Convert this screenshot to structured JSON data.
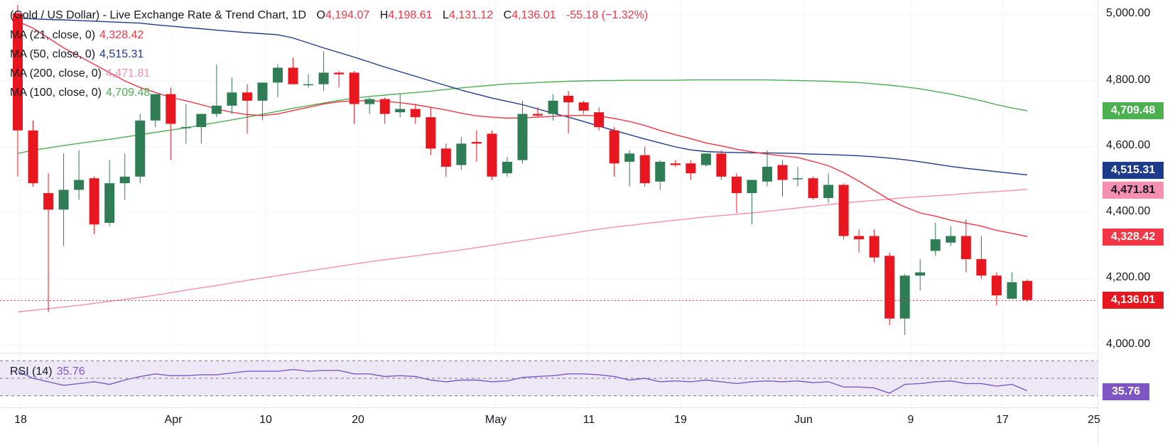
{
  "header": {
    "title": "(Gold / US Dollar) - Live Exchange Rate & Trend Chart, 1D",
    "open_label": "O",
    "open": "4,194.07",
    "high_label": "H",
    "high": "4,198.61",
    "low_label": "L",
    "low": "4,131.12",
    "close_label": "C",
    "close": "4,136.01",
    "change": "-55.18 (−1.32%)"
  },
  "legends": {
    "ma21": {
      "label": "MA (21, close, 0)",
      "value": "4,328.42",
      "color": "#f23645"
    },
    "ma50": {
      "label": "MA (50, close, 0)",
      "value": "4,515.31",
      "color": "#1e3a8a"
    },
    "ma200": {
      "label": "MA (200, close, 0)",
      "value": "4,471.81",
      "color": "#f48fb1"
    },
    "ma100": {
      "label": "MA (100, close, 0)",
      "value": "4,709.48",
      "color": "#4caf50"
    },
    "rsi": {
      "label": "RSI (14)",
      "value": "35.76",
      "color": "#7e57c2"
    }
  },
  "price_axis": {
    "ticks": [
      "5,000.00",
      "4,800.00",
      "4,600.00",
      "4,400.00",
      "4,200.00",
      "4,000.00"
    ],
    "tags": {
      "ma100": "4,709.48",
      "ma50": "4,515.31",
      "ma200": "4,471.81",
      "ma21": "4,328.42",
      "close": "4,136.01",
      "rsi": "35.76"
    }
  },
  "time_axis": [
    "18",
    "Apr",
    "10",
    "20",
    "May",
    "11",
    "19",
    "Jun",
    "9",
    "17",
    "25"
  ],
  "colors": {
    "up": "#2e7d55",
    "down": "#e8161f",
    "ma21": "#f23645",
    "ma50": "#1e3a8a",
    "ma200": "#f48fb1",
    "ma100": "#4caf50",
    "rsi": "#7e57c2",
    "rsi_band": "#ede7f6"
  },
  "chart_data": {
    "type": "candlestick",
    "price_range": [
      3960,
      5030
    ],
    "rsi_range": [
      20,
      80
    ],
    "rsi_levels": [
      70,
      50,
      30
    ],
    "candles": [
      {
        "o": 5005,
        "h": 5030,
        "l": 4510,
        "c": 4650
      },
      {
        "o": 4650,
        "h": 4680,
        "l": 4480,
        "c": 4490
      },
      {
        "o": 4460,
        "h": 4520,
        "l": 4100,
        "c": 4410
      },
      {
        "o": 4410,
        "h": 4580,
        "l": 4300,
        "c": 4470
      },
      {
        "o": 4470,
        "h": 4590,
        "l": 4440,
        "c": 4500
      },
      {
        "o": 4505,
        "h": 4510,
        "l": 4335,
        "c": 4365
      },
      {
        "o": 4370,
        "h": 4560,
        "l": 4360,
        "c": 4490
      },
      {
        "o": 4490,
        "h": 4580,
        "l": 4440,
        "c": 4510
      },
      {
        "o": 4510,
        "h": 4700,
        "l": 4490,
        "c": 4680
      },
      {
        "o": 4680,
        "h": 4760,
        "l": 4660,
        "c": 4760
      },
      {
        "o": 4760,
        "h": 4780,
        "l": 4560,
        "c": 4670
      },
      {
        "o": 4660,
        "h": 4730,
        "l": 4610,
        "c": 4660
      },
      {
        "o": 4660,
        "h": 4690,
        "l": 4610,
        "c": 4700
      },
      {
        "o": 4700,
        "h": 4850,
        "l": 4690,
        "c": 4725
      },
      {
        "o": 4725,
        "h": 4810,
        "l": 4700,
        "c": 4765
      },
      {
        "o": 4765,
        "h": 4790,
        "l": 4640,
        "c": 4740
      },
      {
        "o": 4740,
        "h": 4790,
        "l": 4680,
        "c": 4795
      },
      {
        "o": 4795,
        "h": 4850,
        "l": 4750,
        "c": 4840
      },
      {
        "o": 4840,
        "h": 4870,
        "l": 4790,
        "c": 4790
      },
      {
        "o": 4790,
        "h": 4820,
        "l": 4780,
        "c": 4790
      },
      {
        "o": 4790,
        "h": 4890,
        "l": 4770,
        "c": 4825
      },
      {
        "o": 4825,
        "h": 4830,
        "l": 4780,
        "c": 4820
      },
      {
        "o": 4825,
        "h": 4830,
        "l": 4670,
        "c": 4730
      },
      {
        "o": 4730,
        "h": 4750,
        "l": 4700,
        "c": 4745
      },
      {
        "o": 4745,
        "h": 4750,
        "l": 4670,
        "c": 4700
      },
      {
        "o": 4705,
        "h": 4760,
        "l": 4690,
        "c": 4715
      },
      {
        "o": 4715,
        "h": 4730,
        "l": 4670,
        "c": 4690
      },
      {
        "o": 4690,
        "h": 4720,
        "l": 4575,
        "c": 4595
      },
      {
        "o": 4595,
        "h": 4610,
        "l": 4510,
        "c": 4540
      },
      {
        "o": 4545,
        "h": 4630,
        "l": 4530,
        "c": 4610
      },
      {
        "o": 4615,
        "h": 4650,
        "l": 4555,
        "c": 4610
      },
      {
        "o": 4640,
        "h": 4650,
        "l": 4500,
        "c": 4510
      },
      {
        "o": 4520,
        "h": 4570,
        "l": 4510,
        "c": 4555
      },
      {
        "o": 4560,
        "h": 4740,
        "l": 4550,
        "c": 4700
      },
      {
        "o": 4700,
        "h": 4720,
        "l": 4690,
        "c": 4695
      },
      {
        "o": 4700,
        "h": 4760,
        "l": 4680,
        "c": 4740
      },
      {
        "o": 4755,
        "h": 4770,
        "l": 4640,
        "c": 4735
      },
      {
        "o": 4735,
        "h": 4740,
        "l": 4700,
        "c": 4710
      },
      {
        "o": 4705,
        "h": 4720,
        "l": 4650,
        "c": 4660
      },
      {
        "o": 4650,
        "h": 4660,
        "l": 4510,
        "c": 4550
      },
      {
        "o": 4555,
        "h": 4590,
        "l": 4480,
        "c": 4580
      },
      {
        "o": 4575,
        "h": 4600,
        "l": 4480,
        "c": 4490
      },
      {
        "o": 4495,
        "h": 4560,
        "l": 4470,
        "c": 4555
      },
      {
        "o": 4550,
        "h": 4560,
        "l": 4540,
        "c": 4545
      },
      {
        "o": 4550,
        "h": 4560,
        "l": 4500,
        "c": 4520
      },
      {
        "o": 4545,
        "h": 4580,
        "l": 4540,
        "c": 4580
      },
      {
        "o": 4580,
        "h": 4590,
        "l": 4500,
        "c": 4510
      },
      {
        "o": 4510,
        "h": 4520,
        "l": 4400,
        "c": 4460
      },
      {
        "o": 4460,
        "h": 4500,
        "l": 4365,
        "c": 4500
      },
      {
        "o": 4495,
        "h": 4590,
        "l": 4480,
        "c": 4540
      },
      {
        "o": 4545,
        "h": 4560,
        "l": 4450,
        "c": 4500
      },
      {
        "o": 4505,
        "h": 4540,
        "l": 4480,
        "c": 4505
      },
      {
        "o": 4505,
        "h": 4510,
        "l": 4440,
        "c": 4445
      },
      {
        "o": 4445,
        "h": 4520,
        "l": 4430,
        "c": 4485
      },
      {
        "o": 4485,
        "h": 4490,
        "l": 4320,
        "c": 4330
      },
      {
        "o": 4330,
        "h": 4350,
        "l": 4280,
        "c": 4320
      },
      {
        "o": 4330,
        "h": 4350,
        "l": 4250,
        "c": 4265
      },
      {
        "o": 4270,
        "h": 4280,
        "l": 4060,
        "c": 4080
      },
      {
        "o": 4080,
        "h": 4215,
        "l": 4030,
        "c": 4210
      },
      {
        "o": 4210,
        "h": 4260,
        "l": 4165,
        "c": 4220
      },
      {
        "o": 4285,
        "h": 4370,
        "l": 4270,
        "c": 4320
      },
      {
        "o": 4310,
        "h": 4360,
        "l": 4300,
        "c": 4330
      },
      {
        "o": 4330,
        "h": 4380,
        "l": 4220,
        "c": 4260
      },
      {
        "o": 4260,
        "h": 4330,
        "l": 4200,
        "c": 4210
      },
      {
        "o": 4210,
        "h": 4220,
        "l": 4120,
        "c": 4150
      },
      {
        "o": 4140,
        "h": 4220,
        "l": 4140,
        "c": 4190
      },
      {
        "o": 4194.07,
        "h": 4198.61,
        "l": 4131.12,
        "c": 4136.01
      }
    ],
    "ma21": [
      4980,
      4960,
      4930,
      4900,
      4875,
      4850,
      4825,
      4800,
      4780,
      4765,
      4750,
      4740,
      4728,
      4715,
      4705,
      4698,
      4695,
      4700,
      4710,
      4720,
      4730,
      4737,
      4740,
      4740,
      4738,
      4734,
      4728,
      4720,
      4712,
      4702,
      4694,
      4690,
      4687,
      4688,
      4690,
      4693,
      4695,
      4696,
      4694,
      4686,
      4677,
      4665,
      4650,
      4637,
      4625,
      4612,
      4603,
      4593,
      4585,
      4578,
      4573,
      4568,
      4556,
      4543,
      4522,
      4496,
      4468,
      4440,
      4418,
      4400,
      4390,
      4378,
      4369,
      4360,
      4347,
      4338,
      4328.42
    ],
    "ma50": [
      4990,
      4988,
      4986,
      4985,
      4983,
      4981,
      4979,
      4977,
      4975,
      4970,
      4966,
      4962,
      4958,
      4954,
      4950,
      4946,
      4943,
      4940,
      4930,
      4915,
      4900,
      4886,
      4872,
      4857,
      4842,
      4828,
      4814,
      4800,
      4786,
      4772,
      4760,
      4748,
      4738,
      4728,
      4715,
      4702,
      4690,
      4677,
      4663,
      4650,
      4637,
      4624,
      4612,
      4600,
      4591,
      4586,
      4584,
      4583,
      4582,
      4582,
      4581,
      4580,
      4578,
      4577,
      4575,
      4573,
      4570,
      4566,
      4561,
      4555,
      4548,
      4541,
      4535,
      4530,
      4525,
      4520,
      4515.31
    ],
    "ma200": [
      4100,
      4105,
      4110,
      4115,
      4120,
      4126,
      4132,
      4138,
      4144,
      4151,
      4158,
      4166,
      4173,
      4180,
      4188,
      4196,
      4203,
      4210,
      4217,
      4224,
      4231,
      4238,
      4245,
      4252,
      4258,
      4264,
      4270,
      4276,
      4282,
      4288,
      4295,
      4302,
      4309,
      4316,
      4323,
      4330,
      4337,
      4344,
      4351,
      4357,
      4362,
      4368,
      4373,
      4378,
      4383,
      4388,
      4392,
      4396,
      4400,
      4405,
      4410,
      4415,
      4420,
      4425,
      4430,
      4434,
      4438,
      4442,
      4446,
      4449,
      4452,
      4455,
      4459,
      4462,
      4465,
      4468,
      4471.81
    ],
    "ma100": [
      4580,
      4590,
      4597,
      4604,
      4611,
      4617,
      4623,
      4630,
      4637,
      4644,
      4651,
      4658,
      4666,
      4674,
      4682,
      4690,
      4699,
      4708,
      4717,
      4725,
      4733,
      4741,
      4748,
      4753,
      4757,
      4761,
      4765,
      4769,
      4774,
      4779,
      4783,
      4787,
      4791,
      4793,
      4795,
      4797,
      4799,
      4800,
      4801,
      4801,
      4802,
      4802,
      4802,
      4802,
      4803,
      4803,
      4803,
      4803,
      4803,
      4803,
      4802,
      4801,
      4800,
      4799,
      4797,
      4795,
      4791,
      4787,
      4782,
      4776,
      4768,
      4760,
      4750,
      4740,
      4728,
      4718,
      4709.48
    ],
    "rsi": [
      58,
      50,
      46,
      42,
      44,
      46,
      43,
      48,
      52,
      55,
      53,
      53,
      54,
      54,
      56,
      58,
      58,
      58,
      60,
      58,
      59,
      59,
      55,
      55,
      52,
      53,
      52,
      48,
      46,
      48,
      48,
      46,
      47,
      51,
      52,
      53,
      55,
      55,
      54,
      52,
      48,
      50,
      46,
      47,
      46,
      48,
      46,
      44,
      46,
      47,
      46,
      47,
      45,
      46,
      40,
      40,
      39,
      33,
      43,
      44,
      46,
      47,
      44,
      44,
      41,
      43,
      35.76
    ]
  }
}
